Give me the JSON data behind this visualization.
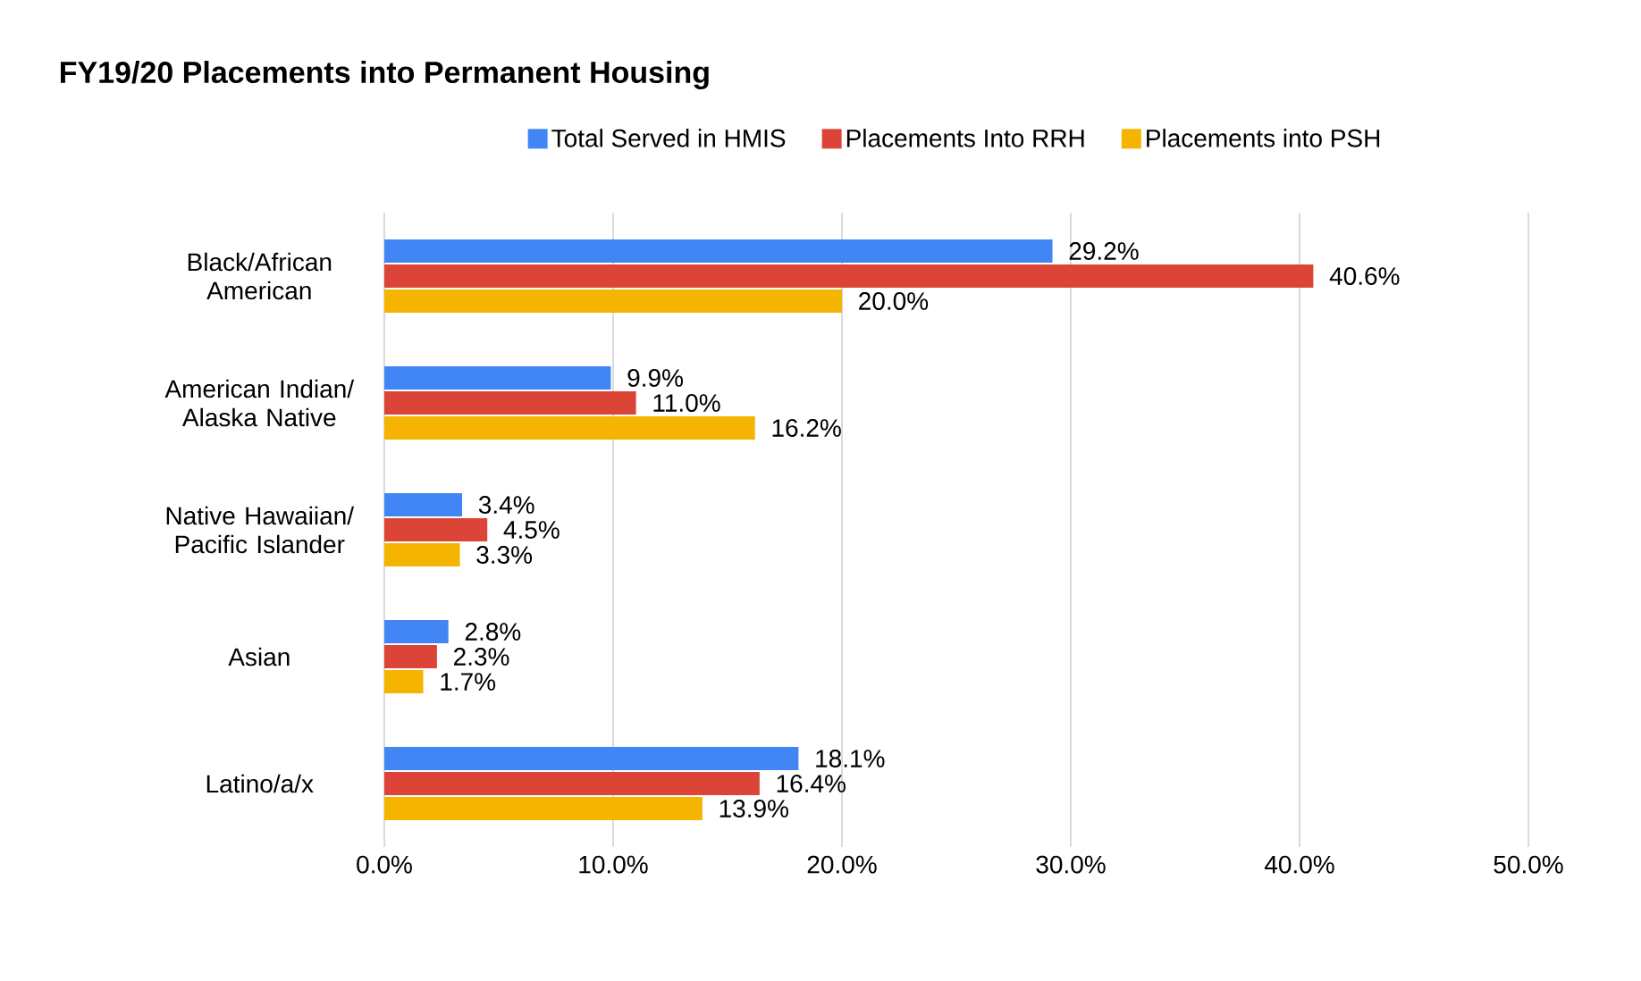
{
  "chart_data": {
    "type": "bar",
    "orientation": "horizontal",
    "title": "FY19/20 Placements into Permanent Housing",
    "categories": [
      "Black/African American",
      "American Indian/ Alaska Native",
      "Native Hawaiian/ Pacific Islander",
      "Asian",
      "Latino/a/x"
    ],
    "series": [
      {
        "name": "Total Served in HMIS",
        "color": "#4285f4",
        "values": [
          29.2,
          9.9,
          3.4,
          2.8,
          18.1
        ],
        "value_labels": [
          "29.2%",
          "9.9%",
          "3.4%",
          "2.8%",
          "18.1%"
        ]
      },
      {
        "name": "Placements Into RRH",
        "color": "#db4437",
        "values": [
          40.6,
          11.0,
          4.5,
          2.3,
          16.4
        ],
        "value_labels": [
          "40.6%",
          "11.0%",
          "4.5%",
          "2.3%",
          "16.4%"
        ]
      },
      {
        "name": "Placements into PSH",
        "color": "#f4b400",
        "values": [
          20.0,
          16.2,
          3.3,
          1.7,
          13.9
        ],
        "value_labels": [
          "20.0%",
          "16.2%",
          "3.3%",
          "1.7%",
          "13.9%"
        ]
      }
    ],
    "xlim": [
      0,
      50
    ],
    "xticks": [
      {
        "value": 0,
        "label": "0.0%"
      },
      {
        "value": 10,
        "label": "10.0%"
      },
      {
        "value": 20,
        "label": "20.0%"
      },
      {
        "value": 30,
        "label": "30.0%"
      },
      {
        "value": 40,
        "label": "40.0%"
      },
      {
        "value": 50,
        "label": "50.0%"
      }
    ],
    "grid": "x",
    "legend": "top"
  }
}
